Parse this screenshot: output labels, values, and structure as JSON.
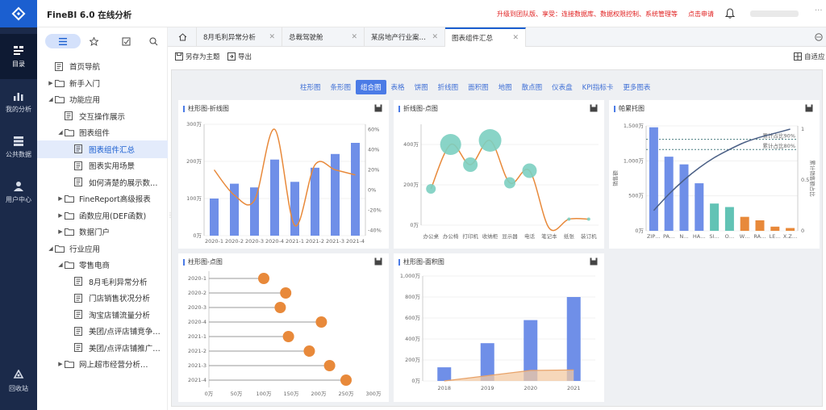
{
  "header": {
    "title": "FineBI 6.0 在线分析",
    "promo": "升级到团队版、享受：连接数据库、数据权限控制、系统管理等",
    "apply": "点击申请",
    "more": "···"
  },
  "leftnav": [
    {
      "label": "目录",
      "icon": "catalog-icon"
    },
    {
      "label": "我的分析",
      "icon": "analysis-icon"
    },
    {
      "label": "公共数据",
      "icon": "data-icon"
    },
    {
      "label": "用户中心",
      "icon": "user-icon"
    },
    {
      "label": "回收站",
      "icon": "recycle-icon"
    }
  ],
  "tree": [
    {
      "label": "首页导航",
      "indent": 0,
      "arrow": "",
      "type": "doc"
    },
    {
      "label": "新手入门",
      "indent": 0,
      "arrow": "▶",
      "type": "folder"
    },
    {
      "label": "功能应用",
      "indent": 0,
      "arrow": "◢",
      "type": "folder"
    },
    {
      "label": "交互操作展示",
      "indent": 1,
      "arrow": "",
      "type": "doc"
    },
    {
      "label": "图表组件",
      "indent": 1,
      "arrow": "◢",
      "type": "folder"
    },
    {
      "label": "图表组件汇总",
      "indent": 2,
      "arrow": "",
      "type": "doc",
      "selected": true
    },
    {
      "label": "图表实用场景",
      "indent": 2,
      "arrow": "",
      "type": "doc"
    },
    {
      "label": "如何清楚的展示数…",
      "indent": 2,
      "arrow": "",
      "type": "doc"
    },
    {
      "label": "FineReport高级报表",
      "indent": 1,
      "arrow": "▶",
      "type": "folder"
    },
    {
      "label": "函数应用(DEF函数)",
      "indent": 1,
      "arrow": "▶",
      "type": "folder"
    },
    {
      "label": "数据门户",
      "indent": 1,
      "arrow": "▶",
      "type": "folder"
    },
    {
      "label": "行业应用",
      "indent": 0,
      "arrow": "◢",
      "type": "folder"
    },
    {
      "label": "零售电商",
      "indent": 1,
      "arrow": "◢",
      "type": "folder"
    },
    {
      "label": "8月毛利异常分析",
      "indent": 2,
      "arrow": "",
      "type": "doc"
    },
    {
      "label": "门店销售状况分析",
      "indent": 2,
      "arrow": "",
      "type": "doc"
    },
    {
      "label": "淘宝店铺流量分析",
      "indent": 2,
      "arrow": "",
      "type": "doc"
    },
    {
      "label": "美团/点评店铺竞争…",
      "indent": 2,
      "arrow": "",
      "type": "doc"
    },
    {
      "label": "美团/点评店铺推广…",
      "indent": 2,
      "arrow": "",
      "type": "doc"
    },
    {
      "label": "网上超市经营分析…",
      "indent": 1,
      "arrow": "▶",
      "type": "folder"
    }
  ],
  "tabs": [
    {
      "label": "8月毛利异常分析"
    },
    {
      "label": "总裁驾驶舱"
    },
    {
      "label": "某房地产行业案…"
    },
    {
      "label": "图表组件汇总",
      "active": true
    }
  ],
  "toolbar": {
    "save_as": "另存为主题",
    "export": "导出",
    "adapt": "自适应"
  },
  "chart_tabs": [
    "柱形图",
    "条形图",
    "组合图",
    "表格",
    "饼图",
    "折线图",
    "面积图",
    "地图",
    "散点图",
    "仪表盘",
    "KPI指标卡",
    "更多图表"
  ],
  "chart_tabs_active": 2,
  "cards": {
    "c1": "柱形图-折线图",
    "c2": "折线图-点图",
    "c3": "帕累托图",
    "c4": "柱形图-点图",
    "c5": "柱形图-面积图"
  },
  "chart_data": [
    {
      "type": "bar",
      "title": "柱形图-折线图",
      "categories": [
        "2020-1",
        "2020-2",
        "2020-3",
        "2020-4",
        "2021-1",
        "2021-2",
        "2021-3",
        "2021-4"
      ],
      "values": [
        100,
        140,
        130,
        205,
        145,
        183,
        220,
        250
      ],
      "line_values": [
        20,
        -5,
        -10,
        60,
        -35,
        25,
        20,
        15
      ],
      "ylim": [
        0,
        300
      ],
      "yticks": [
        "0万",
        "100万",
        "200万",
        "300万"
      ],
      "y2lim": [
        -45,
        65
      ],
      "y2ticks": [
        "-40%",
        "-20%",
        "0%",
        "20%",
        "40%",
        "60%"
      ],
      "colors": {
        "bar": "#6f8fe8",
        "line": "#e8893a"
      }
    },
    {
      "type": "scatter",
      "title": "折线图-点图",
      "categories": [
        "办公桌",
        "办公椅",
        "打印机",
        "收纳柜",
        "显示器",
        "电话",
        "笔记本",
        "纸张",
        "装订机"
      ],
      "values": [
        180,
        400,
        300,
        420,
        210,
        270,
        -15,
        30,
        30
      ],
      "sizes": [
        6,
        13,
        9,
        14,
        7,
        9,
        0,
        2,
        2
      ],
      "ylim": [
        0,
        500
      ],
      "yticks": [
        "0万",
        "200万",
        "400万"
      ],
      "colors": {
        "point": "#7ccfc1",
        "line": "#e8893a"
      }
    },
    {
      "type": "bar",
      "title": "帕累托图",
      "categories": [
        "ZIP…",
        "PA…",
        "N…",
        "HA…",
        "SI…",
        "O…",
        "W…",
        "RA…",
        "LE…",
        "X.Z…"
      ],
      "values": [
        1480,
        1060,
        950,
        680,
        390,
        340,
        200,
        150,
        60,
        40
      ],
      "bar_colors": [
        "#6f8fe8",
        "#6f8fe8",
        "#6f8fe8",
        "#6f8fe8",
        "#62c3b5",
        "#62c3b5",
        "#e8893a",
        "#e8893a",
        "#e8893a",
        "#e8893a"
      ],
      "cumulative": [
        0.2,
        0.36,
        0.5,
        0.62,
        0.72,
        0.8,
        0.87,
        0.92,
        0.96,
        1.0
      ],
      "ylim": [
        0,
        1500
      ],
      "yticks": [
        "0万",
        "500万",
        "1,000万",
        "1,500万"
      ],
      "y2ticks": [
        "0",
        "0.5",
        "1"
      ],
      "ylabel": "销售额",
      "y2label": "累计销售额占比",
      "markers": [
        "累计占比90%",
        "累计占比80%"
      ],
      "colors": {
        "line": "#4a5f85"
      }
    },
    {
      "type": "scatter",
      "title": "柱形图-点图",
      "categories": [
        "2020-1",
        "2020-2",
        "2020-3",
        "2020-4",
        "2021-1",
        "2021-2",
        "2021-3",
        "2021-4"
      ],
      "values": [
        100,
        140,
        130,
        205,
        145,
        183,
        220,
        250
      ],
      "xlim": [
        0,
        300
      ],
      "xticks": [
        "0万",
        "50万",
        "100万",
        "150万",
        "200万",
        "250万",
        "300万"
      ],
      "colors": {
        "point": "#e8893a",
        "line": "#999999"
      }
    },
    {
      "type": "bar",
      "title": "柱形图-面积图",
      "categories": [
        "2018",
        "2019",
        "2020",
        "2021"
      ],
      "values": [
        130,
        360,
        580,
        800
      ],
      "area_values": [
        0,
        50,
        100,
        105
      ],
      "ylim": [
        0,
        1000
      ],
      "yticks": [
        "0万",
        "200万",
        "400万",
        "600万",
        "800万",
        "1,000万"
      ],
      "colors": {
        "bar": "#6f8fe8",
        "area": "#f3c9a3",
        "area_line": "#e8a36a"
      }
    }
  ]
}
